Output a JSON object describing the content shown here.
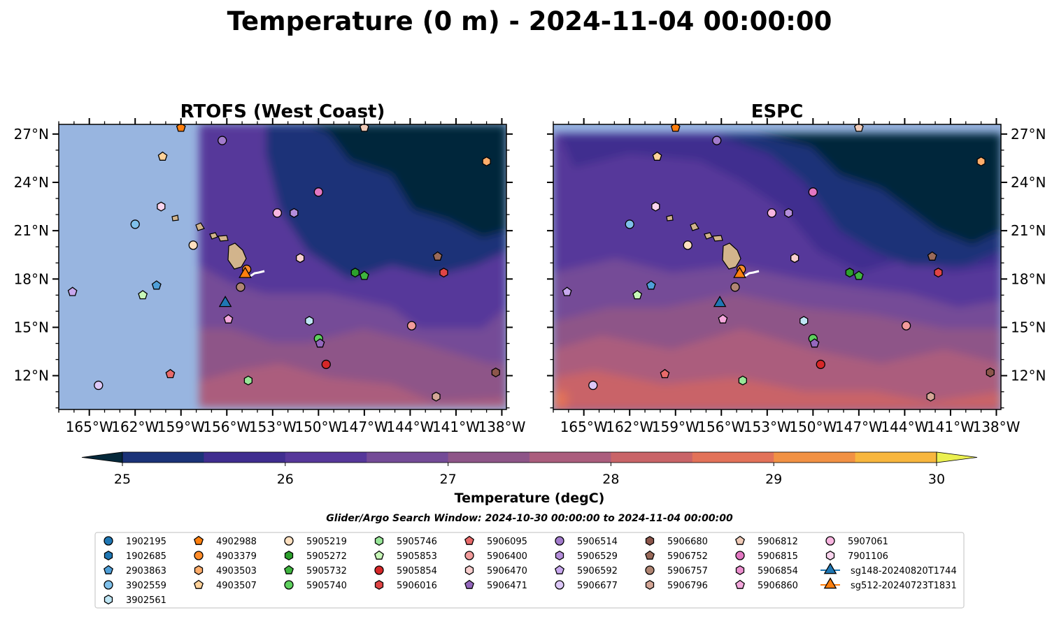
{
  "chart_data": {
    "type": "heatmap",
    "title": "Temperature (0 m) - 2024-11-04 00:00:00",
    "panels": [
      {
        "title": "RTOFS (West Coast)",
        "y_tick_side": "left"
      },
      {
        "title": "ESPC",
        "y_tick_side": "right"
      }
    ],
    "xlim": [
      -167,
      -137.7
    ],
    "ylim": [
      9.9,
      27.6
    ],
    "x_ticks": [
      -165,
      -162,
      -159,
      -156,
      -153,
      -150,
      -147,
      -144,
      -141,
      -138
    ],
    "x_tick_labels": [
      "165°W",
      "162°W",
      "159°W",
      "156°W",
      "153°W",
      "150°W",
      "147°W",
      "144°W",
      "141°W",
      "138°W"
    ],
    "y_ticks": [
      12,
      15,
      18,
      21,
      24,
      27
    ],
    "y_tick_labels": [
      "12°N",
      "15°N",
      "18°N",
      "21°N",
      "24°N",
      "27°N"
    ],
    "rtofs_domain_west_lon": -157.8,
    "colorbar": {
      "label": "Temperature (degC)",
      "min": 25,
      "max": 30,
      "step": 0.5,
      "tick_values": [
        25,
        26,
        27,
        28,
        29,
        30
      ],
      "tick_labels": [
        "25",
        "26",
        "27",
        "28",
        "29",
        "30"
      ],
      "colors": [
        "#05283a",
        "#1b3378",
        "#402d8f",
        "#56379a",
        "#744b97",
        "#8e5588",
        "#ab5d7d",
        "#c96468",
        "#e27259",
        "#f19144",
        "#f7b63e",
        "#ebf050"
      ],
      "extend": "both"
    },
    "colors": {
      "land": "#d2b48c",
      "no_data": "#98b5e0",
      "glider_track": "#ffffff"
    },
    "subtitle": "Glider/Argo Search Window: 2024-10-30 00:00:00 to 2024-11-04 00:00:00",
    "legend_placement": "bottom",
    "series": [
      {
        "name": "1902195",
        "color": "#1f77b4",
        "marker": "circle"
      },
      {
        "name": "1902685",
        "color": "#1f77b4",
        "marker": "hexagon"
      },
      {
        "name": "2903863",
        "color": "#4f9fd8",
        "marker": "pentagon",
        "points": [
          [
            -160.6,
            17.6
          ]
        ]
      },
      {
        "name": "3902559",
        "color": "#7fc0ea",
        "marker": "circle",
        "points": [
          [
            -162,
            21.4
          ]
        ]
      },
      {
        "name": "3902561",
        "color": "#bfe6f5",
        "marker": "hexagon",
        "points": [
          [
            -150.6,
            15.4
          ]
        ]
      },
      {
        "name": "4902988",
        "color": "#ff7f0e",
        "marker": "pentagon",
        "points": [
          [
            -159,
            27.4
          ]
        ]
      },
      {
        "name": "4903379",
        "color": "#ff8c2a",
        "marker": "circle",
        "points": [
          [
            -154.7,
            18.6
          ]
        ]
      },
      {
        "name": "4903503",
        "color": "#ffad6b",
        "marker": "hexagon",
        "points": [
          [
            -139,
            25.3
          ]
        ]
      },
      {
        "name": "4903507",
        "color": "#ffd29a",
        "marker": "pentagon",
        "points": [
          [
            -160.2,
            25.6
          ]
        ]
      },
      {
        "name": "5905219",
        "color": "#ffe0c0",
        "marker": "circle",
        "points": [
          [
            -158.2,
            20.1
          ]
        ]
      },
      {
        "name": "5905272",
        "color": "#2ca02c",
        "marker": "hexagon",
        "points": [
          [
            -147.6,
            18.4
          ]
        ]
      },
      {
        "name": "5905732",
        "color": "#3fb53f",
        "marker": "pentagon",
        "points": [
          [
            -147,
            18.2
          ]
        ]
      },
      {
        "name": "5905740",
        "color": "#5ed05e",
        "marker": "circle",
        "points": [
          [
            -150,
            14.3
          ]
        ]
      },
      {
        "name": "5905746",
        "color": "#98e698",
        "marker": "hexagon",
        "points": [
          [
            -154.6,
            11.7
          ]
        ]
      },
      {
        "name": "5905853",
        "color": "#c8f8b8",
        "marker": "pentagon",
        "points": [
          [
            -161.5,
            17
          ]
        ]
      },
      {
        "name": "5905854",
        "color": "#d62728",
        "marker": "circle",
        "points": [
          [
            -149.5,
            12.7
          ]
        ]
      },
      {
        "name": "5906016",
        "color": "#e04545",
        "marker": "hexagon",
        "points": [
          [
            -141.8,
            18.4
          ]
        ]
      },
      {
        "name": "5906095",
        "color": "#e86a6a",
        "marker": "pentagon",
        "points": [
          [
            -159.7,
            12.1
          ]
        ]
      },
      {
        "name": "5906400",
        "color": "#f29b9b",
        "marker": "circle",
        "points": [
          [
            -143.9,
            15.1
          ]
        ]
      },
      {
        "name": "5906470",
        "color": "#f9cfcf",
        "marker": "hexagon",
        "points": [
          [
            -151.2,
            19.3
          ]
        ]
      },
      {
        "name": "5906471",
        "color": "#9467bd",
        "marker": "pentagon",
        "points": [
          [
            -149.9,
            14
          ]
        ]
      },
      {
        "name": "5906514",
        "color": "#a27bcc",
        "marker": "circle",
        "points": [
          [
            -156.3,
            26.6
          ]
        ]
      },
      {
        "name": "5906529",
        "color": "#b58edb",
        "marker": "hexagon",
        "points": [
          [
            -151.6,
            22.1
          ]
        ]
      },
      {
        "name": "5906592",
        "color": "#c8a8ee",
        "marker": "pentagon",
        "points": [
          [
            -166.1,
            17.2
          ]
        ]
      },
      {
        "name": "5906677",
        "color": "#ddc8f8",
        "marker": "circle",
        "points": [
          [
            -164.4,
            11.4
          ]
        ]
      },
      {
        "name": "5906680",
        "color": "#8c564b",
        "marker": "hexagon",
        "points": [
          [
            -138.4,
            12.2
          ]
        ]
      },
      {
        "name": "5906752",
        "color": "#9a6a5a",
        "marker": "pentagon",
        "points": [
          [
            -142.2,
            19.4
          ]
        ]
      },
      {
        "name": "5906757",
        "color": "#b08573",
        "marker": "circle",
        "points": [
          [
            -155.1,
            17.5
          ]
        ]
      },
      {
        "name": "5906796",
        "color": "#d4a696",
        "marker": "hexagon",
        "points": [
          [
            -142.3,
            10.7
          ]
        ]
      },
      {
        "name": "5906812",
        "color": "#f0cbb8",
        "marker": "pentagon",
        "points": [
          [
            -147,
            27.4
          ]
        ]
      },
      {
        "name": "5906815",
        "color": "#e377c2",
        "marker": "circle",
        "points": [
          [
            -150,
            23.4
          ]
        ]
      },
      {
        "name": "5906854",
        "color": "#ec8fcf",
        "marker": "hexagon"
      },
      {
        "name": "5906860",
        "color": "#f4a8dc",
        "marker": "pentagon",
        "points": [
          [
            -155.9,
            15.5
          ]
        ]
      },
      {
        "name": "5907061",
        "color": "#f8b5e0",
        "marker": "circle",
        "points": [
          [
            -152.7,
            22.1
          ]
        ]
      },
      {
        "name": "7901106",
        "color": "#fbd4ee",
        "marker": "hexagon",
        "points": [
          [
            -160.3,
            22.5
          ]
        ]
      },
      {
        "name": "sg148-20240820T1744",
        "color": "#1f77b4",
        "marker": "triangle",
        "points": [
          [
            -156.1,
            16.5
          ]
        ]
      },
      {
        "name": "sg512-20240723T1831",
        "color": "#ff7f0e",
        "marker": "triangle",
        "points": [
          [
            -154.8,
            18.3
          ]
        ]
      }
    ]
  }
}
